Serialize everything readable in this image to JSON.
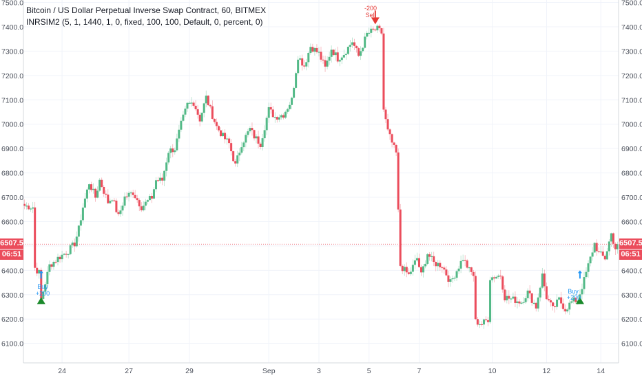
{
  "header": {
    "title": "Bitcoin / US Dollar Perpetual Inverse Swap Contract, 60, BITMEX",
    "study": "INRSIM2 (5, 1, 1440, 1, 0, fixed, 100, 100, Default, 0, percent, 0)"
  },
  "price_tags": {
    "last_price_left": "6507.5",
    "countdown_left": "06:51",
    "last_price_right": "6507.5",
    "countdown_right": "06:51"
  },
  "markers": {
    "buy1_label": "Buy",
    "buy1_qty": "+200",
    "buy2_label": "Buy",
    "buy2_qty": "+200",
    "sell_qty": "-200",
    "sell_label": "Sell"
  },
  "colors": {
    "up": "#53b987",
    "down": "#eb4d5c",
    "grid": "#f0f3fa",
    "buy_marker": "#1b8a2b",
    "sell_marker": "#e53935",
    "tag": "#eb4d5c",
    "label_blue": "#2196f3"
  },
  "chart_data": {
    "type": "candlestick",
    "ylim": [
      6020,
      7510
    ],
    "y_ticks": [
      6100,
      6200,
      6300,
      6400,
      6500,
      6600,
      6700,
      6800,
      6900,
      7000,
      7100,
      7200,
      7300,
      7400,
      7500
    ],
    "y_tick_labels": [
      "6100.0",
      "6200.0",
      "6300.0",
      "6400.0",
      "6500.0",
      "6600.0",
      "6700.0",
      "6800.0",
      "6900.0",
      "7000.0",
      "7100.0",
      "7200.0",
      "7300.0",
      "7400.0",
      "7500.0"
    ],
    "x_tick_labels": [
      "24",
      "27",
      "29",
      "Sep",
      "3",
      "5",
      "7",
      "10",
      "12",
      "14"
    ],
    "x_tick_bars": [
      18,
      50,
      79,
      117,
      141,
      165,
      189,
      224,
      250,
      276
    ],
    "bar_count": 285,
    "last_price": 6507.5,
    "buy_signals": [
      {
        "bar": 8,
        "price": 6290
      },
      {
        "bar": 266,
        "price": 6290
      }
    ],
    "sell_signals": [
      {
        "bar": 168,
        "price": 7410
      }
    ],
    "path_waypoints": [
      [
        0,
        6665
      ],
      [
        4,
        6660
      ],
      [
        5,
        6410
      ],
      [
        7,
        6390
      ],
      [
        8,
        6280
      ],
      [
        12,
        6420
      ],
      [
        16,
        6450
      ],
      [
        21,
        6480
      ],
      [
        24,
        6510
      ],
      [
        26,
        6570
      ],
      [
        28,
        6660
      ],
      [
        31,
        6760
      ],
      [
        34,
        6700
      ],
      [
        36,
        6770
      ],
      [
        40,
        6680
      ],
      [
        42,
        6700
      ],
      [
        45,
        6620
      ],
      [
        48,
        6700
      ],
      [
        52,
        6720
      ],
      [
        56,
        6660
      ],
      [
        61,
        6700
      ],
      [
        63,
        6770
      ],
      [
        66,
        6770
      ],
      [
        69,
        6890
      ],
      [
        72,
        6900
      ],
      [
        75,
        7000
      ],
      [
        78,
        7080
      ],
      [
        81,
        7090
      ],
      [
        84,
        7020
      ],
      [
        87,
        7110
      ],
      [
        89,
        7060
      ],
      [
        92,
        6990
      ],
      [
        95,
        6950
      ],
      [
        98,
        6920
      ],
      [
        101,
        6830
      ],
      [
        104,
        6920
      ],
      [
        108,
        6980
      ],
      [
        110,
        6950
      ],
      [
        113,
        6920
      ],
      [
        117,
        7060
      ],
      [
        120,
        7030
      ],
      [
        124,
        7040
      ],
      [
        128,
        7100
      ],
      [
        131,
        7280
      ],
      [
        134,
        7240
      ],
      [
        137,
        7320
      ],
      [
        141,
        7290
      ],
      [
        144,
        7230
      ],
      [
        147,
        7310
      ],
      [
        150,
        7270
      ],
      [
        153,
        7290
      ],
      [
        157,
        7340
      ],
      [
        160,
        7280
      ],
      [
        164,
        7370
      ],
      [
        166,
        7380
      ],
      [
        169,
        7390
      ],
      [
        171,
        7375
      ],
      [
        172,
        7060
      ],
      [
        174,
        6970
      ],
      [
        177,
        6900
      ],
      [
        178,
        6880
      ],
      [
        179,
        6640
      ],
      [
        180,
        6420
      ],
      [
        184,
        6380
      ],
      [
        188,
        6450
      ],
      [
        190,
        6380
      ],
      [
        193,
        6470
      ],
      [
        196,
        6430
      ],
      [
        200,
        6420
      ],
      [
        204,
        6350
      ],
      [
        207,
        6400
      ],
      [
        210,
        6450
      ],
      [
        213,
        6400
      ],
      [
        215,
        6380
      ],
      [
        216,
        6190
      ],
      [
        219,
        6180
      ],
      [
        222,
        6200
      ],
      [
        223,
        6370
      ],
      [
        228,
        6380
      ],
      [
        230,
        6290
      ],
      [
        234,
        6280
      ],
      [
        238,
        6270
      ],
      [
        241,
        6310
      ],
      [
        245,
        6250
      ],
      [
        248,
        6380
      ],
      [
        250,
        6290
      ],
      [
        253,
        6240
      ],
      [
        256,
        6280
      ],
      [
        259,
        6240
      ],
      [
        262,
        6270
      ],
      [
        265,
        6280
      ],
      [
        268,
        6360
      ],
      [
        270,
        6420
      ],
      [
        273,
        6510
      ],
      [
        275,
        6470
      ],
      [
        278,
        6450
      ],
      [
        281,
        6550
      ],
      [
        283,
        6490
      ],
      [
        285,
        6510
      ]
    ]
  }
}
